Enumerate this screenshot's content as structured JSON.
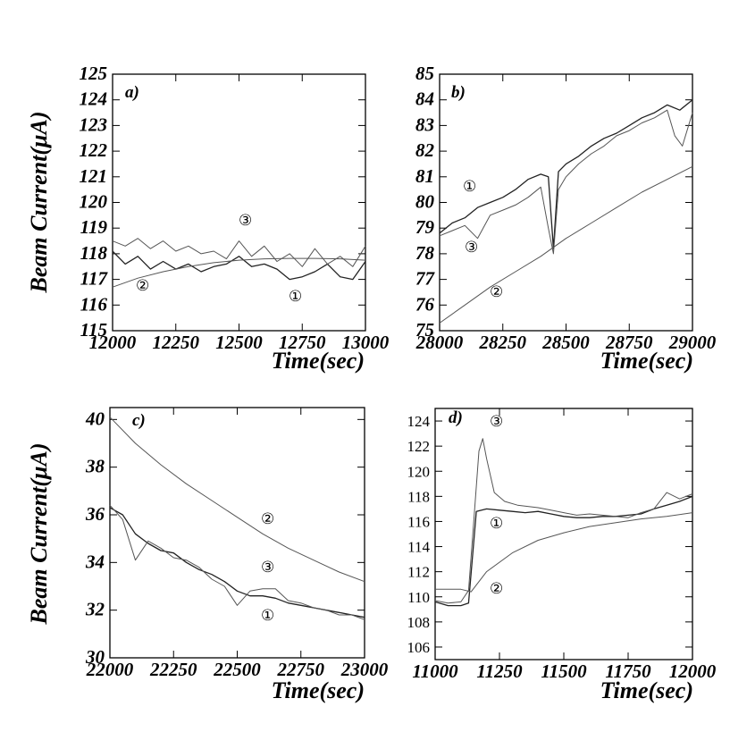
{
  "figure": {
    "ylabel": "Beam Current(μA)",
    "xlabel": "Time(sec)"
  },
  "chart_data": [
    {
      "panel": "a)",
      "type": "line",
      "xlabel": "Time(sec)",
      "ylabel": "Beam Current(μA)",
      "xlim": [
        12000,
        13000
      ],
      "ylim": [
        115,
        125
      ],
      "xticks": [
        12000,
        12250,
        12500,
        12750,
        13000
      ],
      "yticks": [
        115,
        116,
        117,
        118,
        119,
        120,
        121,
        122,
        123,
        124,
        125
      ],
      "series": [
        {
          "label": "①",
          "x": [
            12000,
            12050,
            12100,
            12150,
            12200,
            12250,
            12300,
            12350,
            12400,
            12450,
            12500,
            12550,
            12600,
            12650,
            12700,
            12750,
            12800,
            12850,
            12900,
            12950,
            13000
          ],
          "y": [
            118.1,
            117.6,
            117.9,
            117.4,
            117.7,
            117.4,
            117.6,
            117.3,
            117.5,
            117.6,
            117.9,
            117.5,
            117.6,
            117.4,
            117.0,
            117.1,
            117.3,
            117.6,
            117.1,
            117.0,
            117.7
          ]
        },
        {
          "label": "②",
          "x": [
            12000,
            12100,
            12200,
            12300,
            12400,
            12500,
            12600,
            12700,
            12800,
            12900,
            13000
          ],
          "y": [
            116.7,
            117.05,
            117.3,
            117.5,
            117.65,
            117.75,
            117.8,
            117.82,
            117.82,
            117.8,
            117.75
          ]
        },
        {
          "label": "③",
          "x": [
            12000,
            12050,
            12100,
            12150,
            12200,
            12250,
            12300,
            12350,
            12400,
            12450,
            12500,
            12550,
            12600,
            12650,
            12700,
            12750,
            12800,
            12850,
            12900,
            12950,
            13000
          ],
          "y": [
            118.5,
            118.3,
            118.6,
            118.2,
            118.5,
            118.1,
            118.3,
            118.0,
            118.1,
            117.8,
            118.5,
            117.9,
            118.3,
            117.7,
            118.0,
            117.5,
            118.2,
            117.6,
            117.9,
            117.5,
            118.3
          ]
        }
      ]
    },
    {
      "panel": "b)",
      "type": "line",
      "xlabel": "Time(sec)",
      "ylabel": "",
      "xlim": [
        28000,
        29000
      ],
      "ylim": [
        75,
        85
      ],
      "xticks": [
        28000,
        28250,
        28500,
        28750,
        29000
      ],
      "yticks": [
        75,
        76,
        77,
        78,
        79,
        80,
        81,
        82,
        83,
        84,
        85
      ],
      "series": [
        {
          "label": "①",
          "x": [
            28000,
            28050,
            28100,
            28150,
            28200,
            28250,
            28300,
            28350,
            28400,
            28430,
            28450,
            28470,
            28500,
            28550,
            28600,
            28650,
            28700,
            28750,
            28800,
            28850,
            28900,
            28950,
            29000
          ],
          "y": [
            78.8,
            79.2,
            79.4,
            79.8,
            80.0,
            80.2,
            80.5,
            80.9,
            81.1,
            81.0,
            78.2,
            81.2,
            81.5,
            81.8,
            82.2,
            82.5,
            82.7,
            83.0,
            83.3,
            83.5,
            83.8,
            83.6,
            84.0
          ]
        },
        {
          "label": "②",
          "x": [
            28000,
            28100,
            28200,
            28300,
            28400,
            28500,
            28600,
            28700,
            28800,
            28900,
            29000
          ],
          "y": [
            75.3,
            76.0,
            76.7,
            77.3,
            77.9,
            78.6,
            79.2,
            79.8,
            80.4,
            80.9,
            81.4
          ]
        },
        {
          "label": "③",
          "x": [
            28000,
            28050,
            28100,
            28150,
            28200,
            28250,
            28300,
            28350,
            28400,
            28430,
            28450,
            28470,
            28500,
            28550,
            28600,
            28650,
            28700,
            28750,
            28800,
            28850,
            28900,
            28930,
            28960,
            29000
          ],
          "y": [
            78.7,
            78.9,
            79.1,
            78.6,
            79.5,
            79.7,
            79.9,
            80.2,
            80.6,
            79.0,
            78.0,
            80.5,
            81.0,
            81.5,
            81.9,
            82.2,
            82.6,
            82.8,
            83.1,
            83.3,
            83.6,
            82.6,
            82.2,
            83.5
          ]
        }
      ]
    },
    {
      "panel": "c)",
      "type": "line",
      "xlabel": "Time(sec)",
      "ylabel": "Beam Current(μA)",
      "xlim": [
        22000,
        23000
      ],
      "ylim": [
        30,
        40.5
      ],
      "xticks": [
        22000,
        22250,
        22500,
        22750,
        23000
      ],
      "yticks": [
        30,
        32,
        34,
        36,
        38,
        40
      ],
      "series": [
        {
          "label": "①",
          "x": [
            22000,
            22050,
            22100,
            22150,
            22200,
            22250,
            22300,
            22350,
            22400,
            22450,
            22500,
            22550,
            22600,
            22650,
            22700,
            22750,
            22800,
            22850,
            22900,
            22950,
            23000
          ],
          "y": [
            36.3,
            36.0,
            35.2,
            34.8,
            34.5,
            34.4,
            34.0,
            33.7,
            33.5,
            33.2,
            32.8,
            32.6,
            32.6,
            32.5,
            32.3,
            32.2,
            32.1,
            32.0,
            31.9,
            31.8,
            31.7
          ]
        },
        {
          "label": "②",
          "x": [
            22000,
            22100,
            22200,
            22300,
            22400,
            22500,
            22600,
            22700,
            22800,
            22900,
            23000
          ],
          "y": [
            40.1,
            39.0,
            38.1,
            37.3,
            36.6,
            35.9,
            35.2,
            34.6,
            34.1,
            33.6,
            33.2
          ]
        },
        {
          "label": "③",
          "x": [
            22000,
            22050,
            22100,
            22150,
            22200,
            22250,
            22300,
            22350,
            22400,
            22450,
            22500,
            22550,
            22600,
            22650,
            22700,
            22750,
            22800,
            22850,
            22900,
            22950,
            23000
          ],
          "y": [
            36.4,
            35.8,
            34.1,
            34.9,
            34.6,
            34.2,
            34.1,
            33.8,
            33.3,
            33.0,
            32.2,
            32.8,
            32.9,
            32.9,
            32.4,
            32.3,
            32.1,
            32.0,
            31.8,
            31.8,
            31.6
          ]
        }
      ]
    },
    {
      "panel": "d)",
      "type": "line",
      "xlabel": "Time(sec)",
      "ylabel": "",
      "xlim": [
        11000,
        12000
      ],
      "ylim": [
        105,
        125
      ],
      "xticks": [
        11000,
        11250,
        11500,
        11750,
        12000
      ],
      "yticks": [
        106,
        108,
        110,
        112,
        114,
        116,
        118,
        120,
        122,
        124
      ],
      "series": [
        {
          "label": "①",
          "x": [
            11000,
            11050,
            11100,
            11130,
            11160,
            11200,
            11250,
            11300,
            11350,
            11400,
            11450,
            11500,
            11550,
            11600,
            11650,
            11700,
            11750,
            11800,
            11850,
            11900,
            11950,
            12000
          ],
          "y": [
            109.6,
            109.3,
            109.3,
            109.5,
            116.8,
            117.0,
            116.9,
            116.8,
            116.7,
            116.8,
            116.6,
            116.4,
            116.3,
            116.3,
            116.4,
            116.4,
            116.5,
            116.6,
            117.0,
            117.3,
            117.6,
            118.0
          ]
        },
        {
          "label": "②",
          "x": [
            11000,
            11100,
            11140,
            11200,
            11300,
            11400,
            11500,
            11600,
            11700,
            11800,
            11900,
            12000
          ],
          "y": [
            110.6,
            110.6,
            110.4,
            112.0,
            113.5,
            114.5,
            115.1,
            115.6,
            115.9,
            116.2,
            116.4,
            116.7
          ]
        },
        {
          "label": "③",
          "x": [
            11000,
            11050,
            11100,
            11130,
            11150,
            11170,
            11185,
            11200,
            11230,
            11270,
            11320,
            11400,
            11450,
            11500,
            11550,
            11600,
            11650,
            11700,
            11750,
            11800,
            11850,
            11900,
            11950,
            12000
          ],
          "y": [
            109.7,
            109.5,
            109.6,
            110.5,
            116.0,
            121.6,
            122.6,
            121.0,
            118.3,
            117.6,
            117.3,
            117.1,
            116.9,
            116.7,
            116.5,
            116.6,
            116.5,
            116.4,
            116.3,
            116.7,
            117.0,
            118.3,
            117.8,
            118.2
          ]
        }
      ]
    }
  ]
}
